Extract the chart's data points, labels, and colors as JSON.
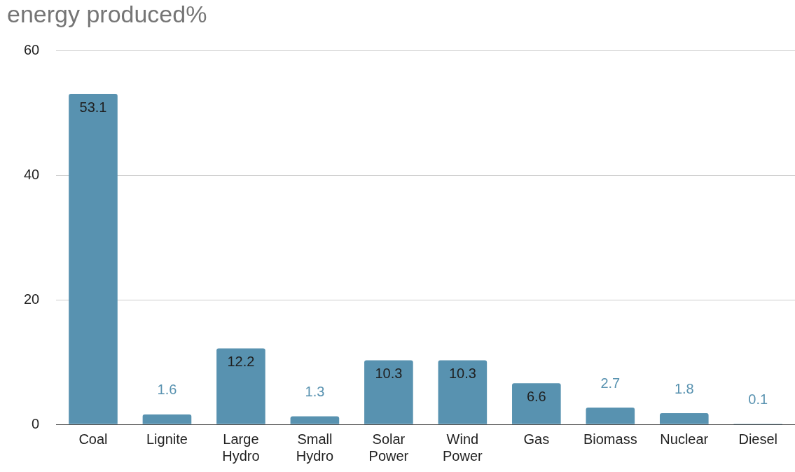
{
  "chart_data": {
    "type": "bar",
    "title": "energy produced%",
    "categories": [
      "Coal",
      "Lignite",
      "Large Hydro",
      "Small Hydro",
      "Solar Power",
      "Wind Power",
      "Gas",
      "Biomass",
      "Nuclear",
      "Diesel"
    ],
    "values": [
      53.1,
      1.6,
      12.2,
      1.3,
      10.3,
      10.3,
      6.6,
      2.7,
      1.8,
      0.1
    ],
    "color": "#5892b0",
    "ylim": [
      0,
      60
    ],
    "yticks": [
      0,
      20,
      40,
      60
    ],
    "grid": "y",
    "data_labels": true
  }
}
